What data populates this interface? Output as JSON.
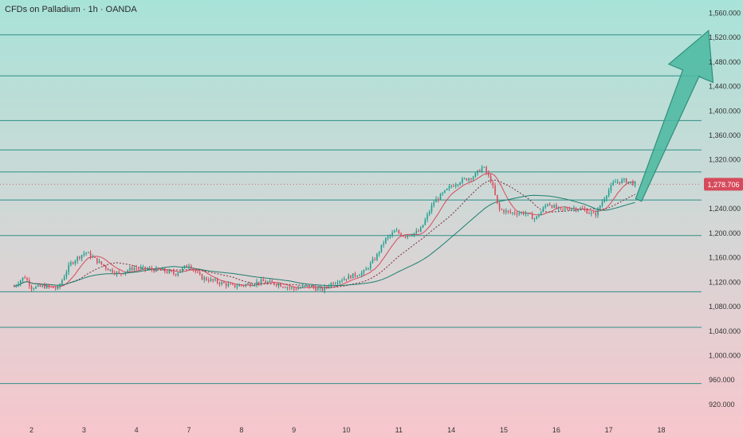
{
  "header": {
    "title": "CFDs on Palladium · 1h · OANDA"
  },
  "colors": {
    "bg_top": "#a8e3d8",
    "bg_bottom": "#f7c6cc",
    "level_line": "#2f8f86",
    "arrow_fill": "#4ab8a0",
    "arrow_stroke": "#2f8f7c",
    "candle_up": "#1b9e8c",
    "candle_down": "#d64b5c",
    "ma_fast": "#d64b5c",
    "ma_mid": "#7a2f3f",
    "ma_slow": "#1b7f6e",
    "price_badge": "#d64b5c"
  },
  "chart_data": {
    "type": "candlestick",
    "symbol_title": "CFDs on Palladium · 1h · OANDA",
    "y_axis": {
      "ticks": [
        920,
        960,
        1000,
        1040,
        1080,
        1120,
        1160,
        1200,
        1240,
        1280,
        1320,
        1360,
        1400,
        1440,
        1480,
        1520,
        1560
      ],
      "tick_labels": [
        "920.000",
        "960.000",
        "1,000.000",
        "1,040.000",
        "1,080.000",
        "1,120.000",
        "1,160.000",
        "1,200.000",
        "1,240.000",
        "1,280.000",
        "1,320.000",
        "1,360.000",
        "1,400.000",
        "1,440.000",
        "1,480.000",
        "1,520.000",
        "1,560.000"
      ],
      "ylim": [
        890,
        1580
      ]
    },
    "x_axis": {
      "labels": [
        "2",
        "3",
        "4",
        "7",
        "8",
        "9",
        "10",
        "11",
        "14",
        "15",
        "16",
        "17",
        "18"
      ],
      "label_positions": [
        1.0,
        4.0,
        7.0,
        10.0,
        13.0,
        16.0,
        19.0,
        22.0,
        25.0,
        28.0,
        31.0,
        34.0,
        37.0
      ],
      "xlim": [
        -0.8,
        39.3
      ]
    },
    "current_price": 1278.706,
    "current_price_label": "1,278.706",
    "horizontal_levels": [
      1523,
      1456,
      1383,
      1335,
      1299,
      1253,
      1195,
      1103,
      1045,
      953
    ],
    "anchors": [
      [
        0,
        1112
      ],
      [
        0.6,
        1128
      ],
      [
        1.0,
        1110
      ],
      [
        1.8,
        1112
      ],
      [
        2.5,
        1108
      ],
      [
        3.2,
        1148
      ],
      [
        3.6,
        1158
      ],
      [
        4.1,
        1168
      ],
      [
        4.8,
        1152
      ],
      [
        5.4,
        1140
      ],
      [
        6.0,
        1132
      ],
      [
        6.8,
        1142
      ],
      [
        7.6,
        1140
      ],
      [
        8.5,
        1138
      ],
      [
        9.2,
        1132
      ],
      [
        10.0,
        1148
      ],
      [
        10.7,
        1126
      ],
      [
        11.5,
        1120
      ],
      [
        12.5,
        1112
      ],
      [
        13.3,
        1115
      ],
      [
        14.2,
        1120
      ],
      [
        15.0,
        1116
      ],
      [
        16.0,
        1108
      ],
      [
        16.8,
        1112
      ],
      [
        17.6,
        1106
      ],
      [
        18.2,
        1118
      ],
      [
        19.2,
        1128
      ],
      [
        20.0,
        1135
      ],
      [
        20.7,
        1160
      ],
      [
        21.2,
        1188
      ],
      [
        21.8,
        1202
      ],
      [
        22.3,
        1194
      ],
      [
        23.2,
        1202
      ],
      [
        24.0,
        1250
      ],
      [
        25.0,
        1276
      ],
      [
        25.5,
        1284
      ],
      [
        26.3,
        1292
      ],
      [
        26.8,
        1308
      ],
      [
        27.3,
        1282
      ],
      [
        27.7,
        1238
      ],
      [
        28.4,
        1232
      ],
      [
        29.2,
        1232
      ],
      [
        29.8,
        1222
      ],
      [
        30.5,
        1248
      ],
      [
        31.2,
        1236
      ],
      [
        31.8,
        1240
      ],
      [
        32.5,
        1238
      ],
      [
        33.2,
        1228
      ],
      [
        33.8,
        1260
      ],
      [
        34.3,
        1282
      ],
      [
        34.9,
        1285
      ],
      [
        35.5,
        1279
      ]
    ],
    "moving_averages": [
      {
        "style": "solid",
        "color_key": "ma_fast",
        "period": 10
      },
      {
        "style": "dotted",
        "color_key": "ma_mid",
        "period": 24
      },
      {
        "style": "solid",
        "color_key": "ma_slow",
        "period": 50
      }
    ],
    "projection_arrow": {
      "from": [
        35.7,
        1253
      ],
      "to": [
        39.7,
        1530
      ]
    }
  }
}
